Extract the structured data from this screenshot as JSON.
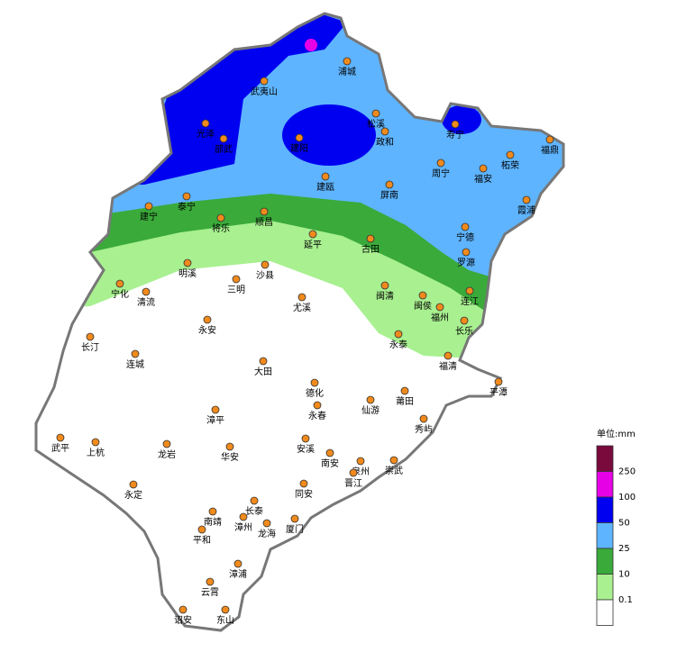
{
  "map": {
    "cities": [
      "光泽",
      "邵武",
      "武夷山",
      "浦城",
      "松溪",
      "政和",
      "寿宁",
      "福鼎",
      "建阳",
      "建瓯",
      "周宁",
      "柘荣",
      "福安",
      "霞浦",
      "泰宁",
      "建宁",
      "将乐",
      "顺昌",
      "屏南",
      "宁德",
      "罗源",
      "延平",
      "古田",
      "明溪",
      "沙县",
      "三明",
      "宁化",
      "清流",
      "尤溪",
      "连江",
      "闽清",
      "闽侯",
      "福州",
      "长乐",
      "永泰",
      "永安",
      "长汀",
      "连城",
      "大田",
      "福清",
      "平潭",
      "德化",
      "永春",
      "仙游",
      "莆田",
      "秀屿",
      "漳平",
      "武平",
      "上杭",
      "龙岩",
      "华安",
      "安溪",
      "南安",
      "泉州",
      "崇武",
      "晋江",
      "永定",
      "同安",
      "长泰",
      "南靖",
      "漳州",
      "龙海",
      "厦门",
      "平和",
      "漳浦",
      "云霄",
      "诏安",
      "东山"
    ]
  },
  "legend": {
    "title": "单位:mm",
    "levels": [
      250,
      100,
      50,
      25,
      10,
      0.1
    ],
    "colors": [
      "#7a0a3c",
      "#e600e6",
      "#0000f0",
      "#5eb4ff",
      "#3aaa3a",
      "#a8f090",
      "#ffffff"
    ]
  }
}
